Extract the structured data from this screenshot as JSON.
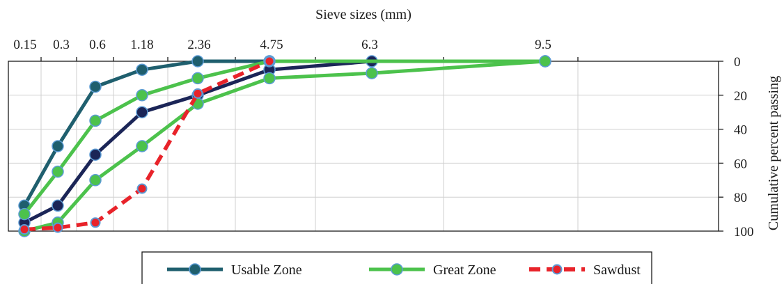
{
  "chart_data": {
    "type": "line",
    "title": "",
    "xlabel": "Sieve sizes (mm)",
    "ylabel": "Cumulative percent passing",
    "x_ticks": [
      "0.15",
      "0.3",
      "0.6",
      "1.18",
      "2.36",
      "4.75",
      "6.3",
      "9.5"
    ],
    "y_ticks": [
      "0",
      "20",
      "40",
      "60",
      "80",
      "100"
    ],
    "ylim": [
      0,
      100
    ],
    "y_axis_reversed": true,
    "y_axis_position": "right",
    "x_axis_position": "top",
    "grid": true,
    "legend_position": "bottom",
    "series": [
      {
        "name": "Usable Zone",
        "color": "#1f5f6e",
        "style": "solid",
        "points": [
          {
            "x": "0.15",
            "y": 85
          },
          {
            "x": "0.3",
            "y": 50
          },
          {
            "x": "0.6",
            "y": 15
          },
          {
            "x": "1.18",
            "y": 5
          },
          {
            "x": "2.36",
            "y": 0
          },
          {
            "x": "4.75",
            "y": 0
          }
        ]
      },
      {
        "name": "",
        "color": "#1b2557",
        "style": "solid",
        "points": [
          {
            "x": "0.15",
            "y": 95
          },
          {
            "x": "0.3",
            "y": 85
          },
          {
            "x": "0.6",
            "y": 55
          },
          {
            "x": "1.18",
            "y": 30
          },
          {
            "x": "2.36",
            "y": 20
          },
          {
            "x": "4.75",
            "y": 5
          },
          {
            "x": "6.3",
            "y": 0
          },
          {
            "x": "9.5",
            "y": 0
          }
        ]
      },
      {
        "name": "Great Zone",
        "color": "#4cc24c",
        "style": "solid",
        "points": [
          {
            "x": "0.15",
            "y": 90
          },
          {
            "x": "0.3",
            "y": 65
          },
          {
            "x": "0.6",
            "y": 35
          },
          {
            "x": "1.18",
            "y": 20
          },
          {
            "x": "2.36",
            "y": 10
          },
          {
            "x": "4.75",
            "y": 0
          },
          {
            "x": "9.5",
            "y": 0
          }
        ]
      },
      {
        "name": "",
        "color": "#4cc24c",
        "style": "solid",
        "points": [
          {
            "x": "0.15",
            "y": 100
          },
          {
            "x": "0.3",
            "y": 95
          },
          {
            "x": "0.6",
            "y": 70
          },
          {
            "x": "1.18",
            "y": 50
          },
          {
            "x": "2.36",
            "y": 25
          },
          {
            "x": "4.75",
            "y": 10
          },
          {
            "x": "6.3",
            "y": 7
          },
          {
            "x": "9.5",
            "y": 0
          }
        ]
      },
      {
        "name": "Sawdust",
        "color": "#e8232a",
        "style": "dashed",
        "points": [
          {
            "x": "0.15",
            "y": 99
          },
          {
            "x": "0.3",
            "y": 98
          },
          {
            "x": "0.6",
            "y": 95
          },
          {
            "x": "1.18",
            "y": 75
          },
          {
            "x": "2.36",
            "y": 19
          },
          {
            "x": "4.75",
            "y": 0
          }
        ]
      }
    ],
    "legend": [
      {
        "name": "Usable Zone",
        "color": "#1f5f6e",
        "style": "solid"
      },
      {
        "name": "Great Zone",
        "color": "#4cc24c",
        "style": "solid"
      },
      {
        "name": "Sawdust",
        "color": "#e8232a",
        "style": "dashed"
      }
    ]
  }
}
